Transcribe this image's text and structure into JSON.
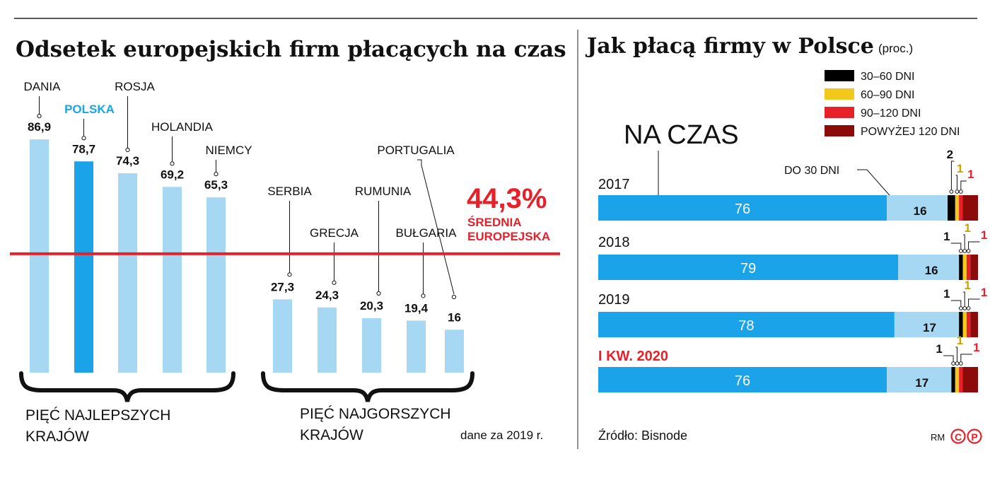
{
  "colors": {
    "bar_light": "#a6d8f3",
    "bar_highlight": "#1aa3e8",
    "bar_main": "#1aa3e8",
    "avg_line": "#e8202a",
    "text": "#111111",
    "accent_red": "#e8202a",
    "d30_60": "#000000",
    "d60_90": "#f2c81c",
    "d90_120": "#e8202a",
    "d120p": "#8c0a0a",
    "yellow_text": "#c8a300"
  },
  "left_panel": {
    "title": "Odsetek europejskich firm płacących na czas",
    "avg_value": "44,3%",
    "avg_label_line1": "ŚREDNIA",
    "avg_label_line2": "EUROPEJSKA",
    "group_best_line1": "PIĘĆ NAJLEPSZYCH",
    "group_best_line2": "KRAJÓW",
    "group_worst_line1": "PIĘĆ NAJGORSZYCH",
    "group_worst_line2": "KRAJÓW",
    "note": "dane za 2019 r."
  },
  "right_panel": {
    "title": "Jak płacą firmy w Polsce",
    "unit": "(proc.)",
    "on_time_label": "NA CZAS",
    "do30_label": "DO 30 DNI",
    "source": "Źródło: Bisnode",
    "credit": "RM",
    "logo_c": "C",
    "logo_p": "P"
  },
  "chart_data": [
    {
      "type": "bar",
      "title": "Odsetek europejskich firm płacących na czas",
      "categories": [
        "DANIA",
        "POLSKA",
        "ROSJA",
        "HOLANDIA",
        "NIEMCY",
        "SERBIA",
        "GRECJA",
        "RUMUNIA",
        "BUŁGARIA",
        "PORTUGALIA"
      ],
      "values": [
        86.9,
        78.7,
        74.3,
        69.2,
        65.3,
        27.3,
        24.3,
        20.3,
        19.4,
        16
      ],
      "value_labels": [
        "86,9",
        "78,7",
        "74,3",
        "69,2",
        "65,3",
        "27,3",
        "24,3",
        "20,3",
        "19,4",
        "16"
      ],
      "highlight": "POLSKA",
      "reference_line": 44.3,
      "ylim": [
        0,
        100
      ]
    },
    {
      "type": "bar",
      "orientation": "horizontal-stacked",
      "title": "Jak płacą firmy w Polsce",
      "categories": [
        "2017",
        "2018",
        "2019",
        "I KW. 2020"
      ],
      "series": [
        {
          "name": "NA CZAS",
          "values": [
            76,
            79,
            78,
            76
          ]
        },
        {
          "name": "DO 30 DNI",
          "values": [
            16,
            16,
            17,
            17
          ]
        },
        {
          "name": "30–60 DNI",
          "values": [
            2,
            1,
            1,
            1
          ]
        },
        {
          "name": "60–90 DNI",
          "values": [
            1,
            1,
            1,
            1
          ]
        },
        {
          "name": "90–120 DNI",
          "values": [
            1,
            1,
            1,
            1
          ]
        },
        {
          "name": "POWYŻEJ 120 DNI",
          "values": [
            4,
            2,
            2,
            4
          ]
        }
      ],
      "legend": [
        "30–60 DNI",
        "60–90 DNI",
        "90–120 DNI",
        "POWYŻEJ 120 DNI"
      ],
      "legend_position": "top-right",
      "xlim": [
        0,
        100
      ]
    }
  ]
}
